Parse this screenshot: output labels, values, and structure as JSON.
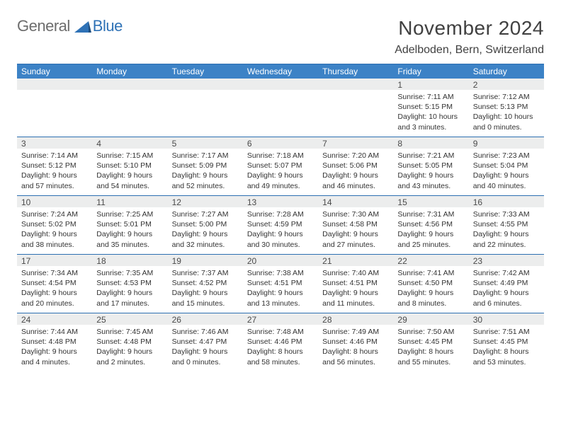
{
  "brand": {
    "general": "General",
    "blue": "Blue"
  },
  "title": "November 2024",
  "location": "Adelboden, Bern, Switzerland",
  "colors": {
    "header_bg": "#3c82c6",
    "header_border": "#2d6fb2",
    "daynum_bg": "#eceded",
    "text_dark": "#414141",
    "text_body": "#333333",
    "logo_gray": "#6d6d6d",
    "logo_blue": "#2f72b6"
  },
  "day_names": [
    "Sunday",
    "Monday",
    "Tuesday",
    "Wednesday",
    "Thursday",
    "Friday",
    "Saturday"
  ],
  "weeks": [
    [
      null,
      null,
      null,
      null,
      null,
      {
        "n": "1",
        "sr": "Sunrise: 7:11 AM",
        "ss": "Sunset: 5:15 PM",
        "dl": "Daylight: 10 hours and 3 minutes."
      },
      {
        "n": "2",
        "sr": "Sunrise: 7:12 AM",
        "ss": "Sunset: 5:13 PM",
        "dl": "Daylight: 10 hours and 0 minutes."
      }
    ],
    [
      {
        "n": "3",
        "sr": "Sunrise: 7:14 AM",
        "ss": "Sunset: 5:12 PM",
        "dl": "Daylight: 9 hours and 57 minutes."
      },
      {
        "n": "4",
        "sr": "Sunrise: 7:15 AM",
        "ss": "Sunset: 5:10 PM",
        "dl": "Daylight: 9 hours and 54 minutes."
      },
      {
        "n": "5",
        "sr": "Sunrise: 7:17 AM",
        "ss": "Sunset: 5:09 PM",
        "dl": "Daylight: 9 hours and 52 minutes."
      },
      {
        "n": "6",
        "sr": "Sunrise: 7:18 AM",
        "ss": "Sunset: 5:07 PM",
        "dl": "Daylight: 9 hours and 49 minutes."
      },
      {
        "n": "7",
        "sr": "Sunrise: 7:20 AM",
        "ss": "Sunset: 5:06 PM",
        "dl": "Daylight: 9 hours and 46 minutes."
      },
      {
        "n": "8",
        "sr": "Sunrise: 7:21 AM",
        "ss": "Sunset: 5:05 PM",
        "dl": "Daylight: 9 hours and 43 minutes."
      },
      {
        "n": "9",
        "sr": "Sunrise: 7:23 AM",
        "ss": "Sunset: 5:04 PM",
        "dl": "Daylight: 9 hours and 40 minutes."
      }
    ],
    [
      {
        "n": "10",
        "sr": "Sunrise: 7:24 AM",
        "ss": "Sunset: 5:02 PM",
        "dl": "Daylight: 9 hours and 38 minutes."
      },
      {
        "n": "11",
        "sr": "Sunrise: 7:25 AM",
        "ss": "Sunset: 5:01 PM",
        "dl": "Daylight: 9 hours and 35 minutes."
      },
      {
        "n": "12",
        "sr": "Sunrise: 7:27 AM",
        "ss": "Sunset: 5:00 PM",
        "dl": "Daylight: 9 hours and 32 minutes."
      },
      {
        "n": "13",
        "sr": "Sunrise: 7:28 AM",
        "ss": "Sunset: 4:59 PM",
        "dl": "Daylight: 9 hours and 30 minutes."
      },
      {
        "n": "14",
        "sr": "Sunrise: 7:30 AM",
        "ss": "Sunset: 4:58 PM",
        "dl": "Daylight: 9 hours and 27 minutes."
      },
      {
        "n": "15",
        "sr": "Sunrise: 7:31 AM",
        "ss": "Sunset: 4:56 PM",
        "dl": "Daylight: 9 hours and 25 minutes."
      },
      {
        "n": "16",
        "sr": "Sunrise: 7:33 AM",
        "ss": "Sunset: 4:55 PM",
        "dl": "Daylight: 9 hours and 22 minutes."
      }
    ],
    [
      {
        "n": "17",
        "sr": "Sunrise: 7:34 AM",
        "ss": "Sunset: 4:54 PM",
        "dl": "Daylight: 9 hours and 20 minutes."
      },
      {
        "n": "18",
        "sr": "Sunrise: 7:35 AM",
        "ss": "Sunset: 4:53 PM",
        "dl": "Daylight: 9 hours and 17 minutes."
      },
      {
        "n": "19",
        "sr": "Sunrise: 7:37 AM",
        "ss": "Sunset: 4:52 PM",
        "dl": "Daylight: 9 hours and 15 minutes."
      },
      {
        "n": "20",
        "sr": "Sunrise: 7:38 AM",
        "ss": "Sunset: 4:51 PM",
        "dl": "Daylight: 9 hours and 13 minutes."
      },
      {
        "n": "21",
        "sr": "Sunrise: 7:40 AM",
        "ss": "Sunset: 4:51 PM",
        "dl": "Daylight: 9 hours and 11 minutes."
      },
      {
        "n": "22",
        "sr": "Sunrise: 7:41 AM",
        "ss": "Sunset: 4:50 PM",
        "dl": "Daylight: 9 hours and 8 minutes."
      },
      {
        "n": "23",
        "sr": "Sunrise: 7:42 AM",
        "ss": "Sunset: 4:49 PM",
        "dl": "Daylight: 9 hours and 6 minutes."
      }
    ],
    [
      {
        "n": "24",
        "sr": "Sunrise: 7:44 AM",
        "ss": "Sunset: 4:48 PM",
        "dl": "Daylight: 9 hours and 4 minutes."
      },
      {
        "n": "25",
        "sr": "Sunrise: 7:45 AM",
        "ss": "Sunset: 4:48 PM",
        "dl": "Daylight: 9 hours and 2 minutes."
      },
      {
        "n": "26",
        "sr": "Sunrise: 7:46 AM",
        "ss": "Sunset: 4:47 PM",
        "dl": "Daylight: 9 hours and 0 minutes."
      },
      {
        "n": "27",
        "sr": "Sunrise: 7:48 AM",
        "ss": "Sunset: 4:46 PM",
        "dl": "Daylight: 8 hours and 58 minutes."
      },
      {
        "n": "28",
        "sr": "Sunrise: 7:49 AM",
        "ss": "Sunset: 4:46 PM",
        "dl": "Daylight: 8 hours and 56 minutes."
      },
      {
        "n": "29",
        "sr": "Sunrise: 7:50 AM",
        "ss": "Sunset: 4:45 PM",
        "dl": "Daylight: 8 hours and 55 minutes."
      },
      {
        "n": "30",
        "sr": "Sunrise: 7:51 AM",
        "ss": "Sunset: 4:45 PM",
        "dl": "Daylight: 8 hours and 53 minutes."
      }
    ]
  ]
}
